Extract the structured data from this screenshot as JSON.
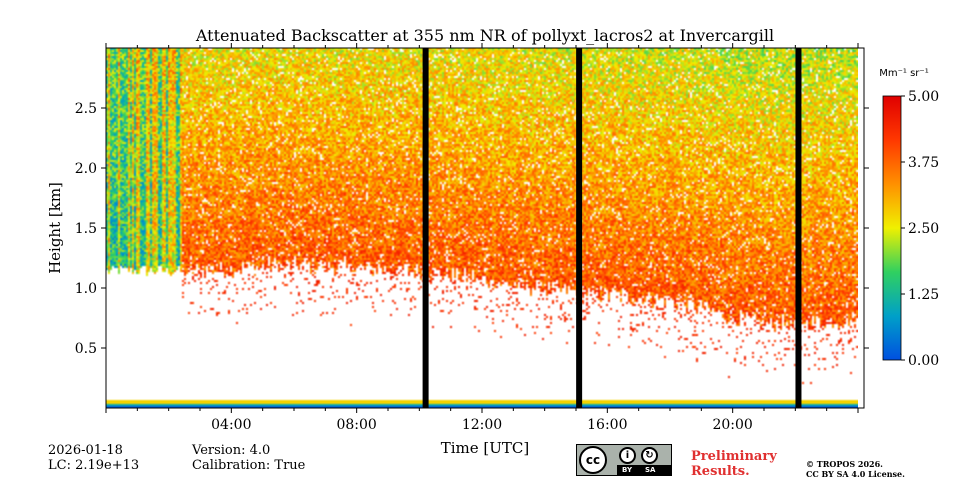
{
  "chart_data": {
    "type": "heatmap",
    "title": "Attenuated Backscatter at 355 nm NR of pollyxt_lacros2 at Invercargill",
    "xlabel": "Time [UTC]",
    "ylabel": "Height [km]",
    "xlim_hours": [
      0,
      24
    ],
    "ylim_km": [
      0,
      3.0
    ],
    "x_ticks": [
      {
        "hour": 4,
        "label": "04:00"
      },
      {
        "hour": 8,
        "label": "08:00"
      },
      {
        "hour": 12,
        "label": "12:00"
      },
      {
        "hour": 16,
        "label": "16:00"
      },
      {
        "hour": 20,
        "label": "20:00"
      }
    ],
    "y_ticks": [
      {
        "value": 0.5,
        "label": "0.5"
      },
      {
        "value": 1.0,
        "label": "1.0"
      },
      {
        "value": 1.5,
        "label": "1.5"
      },
      {
        "value": 2.0,
        "label": "2.0"
      },
      {
        "value": 2.5,
        "label": "2.5"
      }
    ],
    "colorbar": {
      "unit_label": "Mm⁻¹ sr⁻¹",
      "range": [
        0,
        5
      ],
      "ticks": [
        {
          "value": 5.0,
          "label": "5.00"
        },
        {
          "value": 3.75,
          "label": "3.75"
        },
        {
          "value": 2.5,
          "label": "2.50"
        },
        {
          "value": 1.25,
          "label": "1.25"
        },
        {
          "value": 0.0,
          "label": "0.00"
        }
      ],
      "colormap": [
        "#0050e0",
        "#00a0c8",
        "#30d060",
        "#f0f000",
        "#ff9000",
        "#ff3800",
        "#e00000"
      ]
    },
    "data_gaps_hours": [
      10.2,
      15.1,
      22.1
    ],
    "cloud_period_hours": [
      0,
      2.4
    ],
    "layer_base_km": {
      "0": 1.1,
      "6": 1.2,
      "10": 1.15,
      "14": 1.0,
      "18": 0.9,
      "21": 0.7,
      "24": 0.75
    }
  },
  "footer": {
    "date": "2026-01-18",
    "lc": "LC: 2.19e+13",
    "version": "Version: 4.0",
    "calibration": "Calibration: True",
    "preliminary": "Preliminary\nResults.",
    "copyright_line1": "© TROPOS 2026.",
    "copyright_line2": "CC BY SA 4.0 License.",
    "license_badge": {
      "cc": "cc",
      "by": "BY",
      "sa": "SA"
    }
  }
}
